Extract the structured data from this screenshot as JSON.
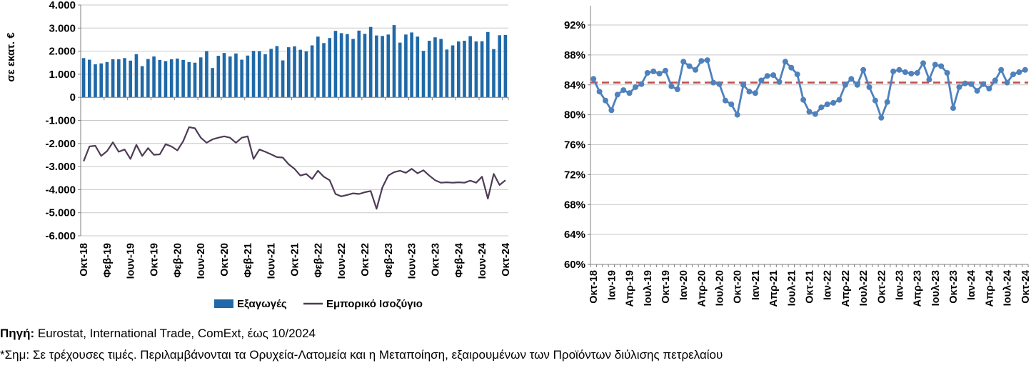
{
  "footer": {
    "source_label": "Πηγή:",
    "source_text": " Eurostat, International Trade, ComExt, έως 10/2024",
    "note": "*Σημ: Σε τρέχουσες τιμές. Περιλαμβάνονται τα Ορυχεία-Λατομεία και η Μεταποίηση, εξαιρουμένων των Προϊόντων διύλισης πετρελαίου"
  },
  "colors": {
    "bar": "#1F69A8",
    "balance_line": "#4E3B56",
    "ratio_line": "#4F81BD",
    "reference_line": "#C0504D",
    "grid": "#C9C9C9",
    "axis": "#808080",
    "text": "#000000"
  },
  "chart_data": [
    {
      "type": "bar",
      "title": "",
      "ylabel": "σε εκατ. €",
      "ylim": [
        -6000,
        4000
      ],
      "grid": true,
      "legend_position": "bottom",
      "legend": [
        "Εξαγωγές",
        "Εμπορικό Ισοζύγιο"
      ],
      "n_months": 73,
      "x_first": "Οκτ-18",
      "x_last": "Οκτ-24",
      "xtick_every": 4,
      "xtick_labels": [
        "Οκτ-18",
        "Φεβ-19",
        "Ιουν-19",
        "Οκτ-19",
        "Φεβ-20",
        "Ιουν-20",
        "Οκτ-20",
        "Φεβ-21",
        "Ιουν-21",
        "Οκτ-21",
        "Φεβ-22",
        "Ιουν-22",
        "Οκτ-22",
        "Φεβ-23",
        "Ιουν-23",
        "Οκτ-23",
        "Φεβ-24",
        "Ιουν-24",
        "Οκτ-24"
      ],
      "ytick_values": [
        4000,
        3000,
        2000,
        1000,
        0,
        -1000,
        -2000,
        -3000,
        -4000,
        -5000,
        -6000
      ],
      "ytick_labels": [
        "4.000",
        "3.000",
        "2.000",
        "1.000",
        "0",
        "-1.000",
        "-2.000",
        "-3.000",
        "-4.000",
        "-5.000",
        "-6.000"
      ],
      "series": [
        {
          "name": "Εξαγωγές",
          "type": "bar",
          "values": [
            1700,
            1630,
            1430,
            1470,
            1530,
            1650,
            1650,
            1700,
            1590,
            1870,
            1350,
            1660,
            1770,
            1620,
            1570,
            1650,
            1680,
            1620,
            1530,
            1500,
            1730,
            2000,
            1270,
            1800,
            1920,
            1770,
            1900,
            1630,
            1810,
            2010,
            2000,
            1870,
            2100,
            2220,
            1600,
            2170,
            2210,
            2060,
            1990,
            2250,
            2630,
            2350,
            2570,
            2880,
            2780,
            2740,
            2530,
            2890,
            2750,
            3050,
            2680,
            2660,
            2720,
            3130,
            2370,
            2720,
            2810,
            2630,
            2010,
            2450,
            2600,
            2530,
            2070,
            2250,
            2420,
            2450,
            2650,
            2420,
            2430,
            2830,
            2090,
            2690,
            2700
          ]
        },
        {
          "name": "Εμπορικό Ισοζύγιο",
          "type": "line",
          "values": [
            -2770,
            -2130,
            -2100,
            -2540,
            -2330,
            -1950,
            -2360,
            -2260,
            -2670,
            -2060,
            -2540,
            -2200,
            -2490,
            -2470,
            -2030,
            -2130,
            -2300,
            -1900,
            -1290,
            -1340,
            -1750,
            -1970,
            -1820,
            -1750,
            -1690,
            -1750,
            -1970,
            -1750,
            -1690,
            -2670,
            -2260,
            -2360,
            -2470,
            -2590,
            -2610,
            -2900,
            -3100,
            -3390,
            -3320,
            -3540,
            -3180,
            -3440,
            -3590,
            -4190,
            -4290,
            -4230,
            -4160,
            -4190,
            -4110,
            -4060,
            -4830,
            -3900,
            -3390,
            -3240,
            -3180,
            -3270,
            -3100,
            -3290,
            -3160,
            -3390,
            -3590,
            -3700,
            -3680,
            -3700,
            -3680,
            -3700,
            -3610,
            -3700,
            -3440,
            -4390,
            -3320,
            -3800,
            -3590
          ]
        }
      ]
    },
    {
      "type": "line",
      "title": "",
      "ylim": [
        60,
        92
      ],
      "grid": true,
      "n_months": 73,
      "x_first": "Οκτ-18",
      "x_last": "Οκτ-24",
      "xtick_every": 3,
      "xtick_labels": [
        "Οκτ-18",
        "Ιαν-19",
        "Απρ-19",
        "Ιουλ-19",
        "Οκτ-19",
        "Ιαν-20",
        "Απρ-20",
        "Ιουλ-20",
        "Οκτ-20",
        "Ιαν-21",
        "Απρ-21",
        "Ιουλ-21",
        "Οκτ-21",
        "Ιαν-22",
        "Απρ-22",
        "Ιουλ-22",
        "Οκτ-22",
        "Ιαν-23",
        "Απρ-23",
        "Ιουλ-23",
        "Οκτ-23",
        "Ιαν-24",
        "Απρ-24",
        "Ιουλ-24",
        "Οκτ-24"
      ],
      "ytick_values": [
        92,
        88,
        84,
        80,
        76,
        72,
        68,
        64,
        60
      ],
      "ytick_labels": [
        "92%",
        "88%",
        "84%",
        "80%",
        "76%",
        "72%",
        "68%",
        "64%",
        "60%"
      ],
      "series": [
        {
          "name": "",
          "type": "line-markers",
          "values": [
            84.8,
            83.1,
            81.9,
            80.6,
            82.7,
            83.3,
            82.9,
            83.7,
            84.1,
            85.6,
            85.8,
            85.5,
            85.9,
            83.8,
            83.4,
            87.1,
            86.5,
            86.0,
            87.2,
            87.3,
            84.3,
            84.1,
            81.9,
            81.4,
            80.0,
            84.0,
            83.1,
            82.9,
            84.6,
            85.2,
            85.3,
            84.4,
            87.1,
            86.3,
            85.4,
            82.0,
            80.4,
            80.1,
            81.0,
            81.4,
            81.6,
            82.0,
            84.0,
            84.8,
            84.0,
            86.0,
            83.7,
            81.9,
            79.6,
            81.7,
            85.8,
            86.0,
            85.7,
            85.5,
            85.6,
            86.9,
            84.7,
            86.7,
            86.5,
            85.6,
            80.9,
            83.7,
            84.2,
            84.1,
            83.2,
            84.1,
            83.5,
            84.6,
            86.0,
            84.3,
            85.4,
            85.7,
            86.0
          ]
        }
      ],
      "reference_line": {
        "value": 84.3,
        "style": "dashed"
      }
    }
  ]
}
